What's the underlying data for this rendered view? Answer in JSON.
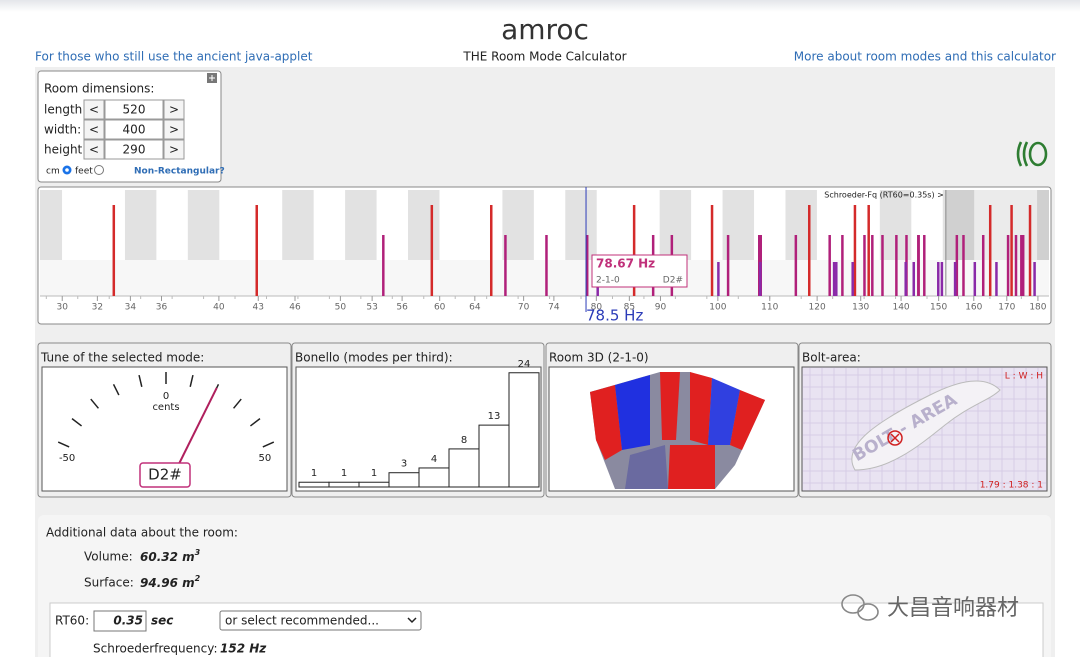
{
  "header": {
    "title": "amroc",
    "subtitle": "THE Room Mode Calculator",
    "left_link": "For those who still use the ancient java-applet",
    "right_link": "More about room modes and this calculator"
  },
  "room": {
    "heading": "Room dimensions:",
    "dec": "<",
    "inc": ">",
    "fields": [
      {
        "label": "length:",
        "value": 520
      },
      {
        "label": "width:",
        "value": 400
      },
      {
        "label": "height:",
        "value": 290
      }
    ],
    "units": [
      "cm",
      "feet"
    ],
    "non_rect": "Non-Rectangular?"
  },
  "spectrum": {
    "xlim": [
      28.8,
      183.7
    ],
    "log": true,
    "xticks": [
      30,
      32,
      34,
      36,
      40,
      43,
      46,
      50,
      53,
      56,
      60,
      64,
      70,
      74,
      80,
      85,
      90,
      100,
      110,
      120,
      130,
      140,
      150,
      160,
      170,
      180
    ],
    "series": [
      {
        "color": "#d42a2a",
        "values": [
          32.98,
          65.96,
          98.94,
          131.92,
          164.9,
          42.88,
          85.75,
          128.63,
          171.5,
          59.14,
          118.28,
          177.41
        ]
      },
      {
        "color": "#b0207a",
        "values": [
          54.1,
          78.67,
          91.9,
          107.9,
          108.2,
          130.9,
          132.8,
          138.8,
          144.6,
          157.0,
          162.8,
          170.4,
          174.6,
          67.7,
          88.8,
          115.4,
          122.8,
          135.3,
          144.5,
          155.1,
          175.2,
          73.0,
          101.9,
          125.7,
          141.4,
          146.1,
          172.9
        ]
      },
      {
        "color": "#8a2aa8",
        "values": [
          80.2,
          100.1,
          108.1,
          123.8,
          124.3,
          128.1,
          141.2,
          143.3,
          149.9,
          150.9,
          154.6,
          160.3,
          166.8,
          178.9
        ]
      }
    ],
    "schroeder_label": "Schroeder-Fq (RT60=0.35s) >",
    "cursor": {
      "value": 78.5,
      "label": "78.5 Hz"
    },
    "tooltip": {
      "freq": "78.67 Hz",
      "mode": "2-1-0",
      "note": "D2#"
    }
  },
  "gauge": {
    "title": "Tune of the selected mode:",
    "ticks": [
      -50,
      -40,
      -30,
      -20,
      -10,
      0,
      10,
      20,
      30,
      40,
      50
    ],
    "labels": [
      -50,
      0,
      50
    ],
    "unit": "cents",
    "value": 20,
    "note": "D2#"
  },
  "bonello": {
    "title": "Bonello (modes per third):",
    "values": [
      1,
      1,
      1,
      3,
      4,
      8,
      13,
      24
    ],
    "ylim": [
      0,
      25
    ]
  },
  "room3d": {
    "title": "Room 3D (2-1-0)"
  },
  "bolt": {
    "title": "Bolt-area:",
    "header": "L : W : H",
    "ratio": "1.79 : 1.38 : 1",
    "watermark": "BOLT - AREA"
  },
  "additional": {
    "heading": "Additional data about the room:",
    "volume": {
      "label": "Volume:",
      "value": 60.32,
      "unit": "m",
      "exp": 3
    },
    "surface": {
      "label": "Surface:",
      "value": 94.96,
      "unit": "m",
      "exp": 2
    },
    "rt60_label": "RT60:",
    "rt60": 0.35,
    "rt60_unit": "sec",
    "select": "or select recommended...",
    "schroeder_label": "Schroederfrequency:",
    "schroeder": {
      "value": 152,
      "label": "152 Hz"
    }
  },
  "watermark": "大昌音响器材"
}
